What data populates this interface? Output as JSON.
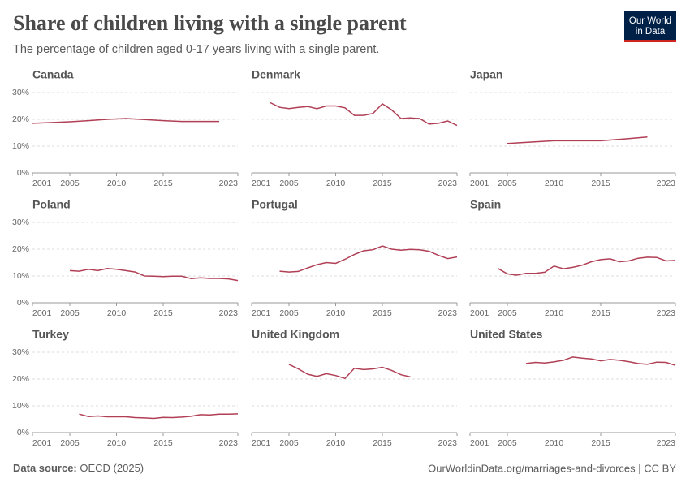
{
  "header": {
    "title": "Share of children living with a single parent",
    "subtitle": "The percentage of children aged 0-17 years living with a single parent.",
    "logo": [
      "Our World",
      "in Data"
    ]
  },
  "footer": {
    "source_label": "Data source:",
    "source": "OECD (2025)",
    "url": "OurWorldinData.org/marriages-and-divorces | CC BY"
  },
  "chart_data": [
    {
      "type": "line",
      "title": "Canada",
      "color": "#b13f55",
      "x": [
        2001,
        2003,
        2005,
        2007,
        2009,
        2011,
        2013,
        2015,
        2017,
        2019,
        2021
      ],
      "values": [
        18.5,
        18.8,
        19.1,
        19.5,
        20.0,
        20.3,
        19.9,
        19.5,
        19.2,
        19.2,
        19.2
      ],
      "xlim": [
        2001,
        2023
      ],
      "xticks": [
        2001,
        2005,
        2010,
        2015,
        2023
      ],
      "ylim": [
        0,
        30
      ],
      "yticks": [
        {
          "value": 0,
          "label": "0%"
        },
        {
          "value": 10,
          "label": "10%"
        },
        {
          "value": 20,
          "label": "20%"
        },
        {
          "value": 30,
          "label": "30%"
        }
      ]
    },
    {
      "type": "line",
      "title": "Denmark",
      "color": "#b13f55",
      "x": [
        2003,
        2004,
        2005,
        2006,
        2007,
        2008,
        2009,
        2010,
        2011,
        2012,
        2013,
        2014,
        2015,
        2016,
        2017,
        2018,
        2019,
        2020,
        2021,
        2022,
        2023
      ],
      "values": [
        26.2,
        24.5,
        24.0,
        24.5,
        24.8,
        24.0,
        25.0,
        25.0,
        24.3,
        21.5,
        21.5,
        22.2,
        25.8,
        23.5,
        20.3,
        20.5,
        20.3,
        18.2,
        18.5,
        19.4,
        17.7
      ],
      "xlim": [
        2001,
        2023
      ],
      "xticks": [
        2001,
        2005,
        2010,
        2015,
        2023
      ],
      "ylim": [
        0,
        30
      ],
      "yticks": [
        0,
        10,
        20,
        30
      ]
    },
    {
      "type": "line",
      "title": "Japan",
      "color": "#b13f55",
      "x": [
        2005,
        2007,
        2010,
        2012,
        2015,
        2018,
        2020
      ],
      "values": [
        11.0,
        11.4,
        12.0,
        12.0,
        12.0,
        12.8,
        13.4
      ],
      "xlim": [
        2001,
        2023
      ],
      "xticks": [
        2001,
        2005,
        2010,
        2015,
        2023
      ],
      "ylim": [
        0,
        30
      ],
      "yticks": [
        0,
        10,
        20,
        30
      ]
    },
    {
      "type": "line",
      "title": "Poland",
      "color": "#b13f55",
      "x": [
        2005,
        2006,
        2007,
        2008,
        2009,
        2010,
        2011,
        2012,
        2013,
        2014,
        2015,
        2016,
        2017,
        2018,
        2019,
        2020,
        2021,
        2022,
        2023
      ],
      "values": [
        12.0,
        11.8,
        12.5,
        12.0,
        12.8,
        12.5,
        12.0,
        11.5,
        10.0,
        9.9,
        9.8,
        9.9,
        9.9,
        9.0,
        9.3,
        9.1,
        9.1,
        8.9,
        8.3
      ],
      "xlim": [
        2001,
        2023
      ],
      "xticks": [
        2001,
        2005,
        2010,
        2015,
        2023
      ],
      "ylim": [
        0,
        30
      ],
      "yticks": [
        {
          "value": 0,
          "label": "0%"
        },
        {
          "value": 10,
          "label": "10%"
        },
        {
          "value": 20,
          "label": "20%"
        },
        {
          "value": 30,
          "label": "30%"
        }
      ]
    },
    {
      "type": "line",
      "title": "Portugal",
      "color": "#b13f55",
      "x": [
        2004,
        2005,
        2006,
        2007,
        2008,
        2009,
        2010,
        2011,
        2012,
        2013,
        2014,
        2015,
        2016,
        2017,
        2018,
        2019,
        2020,
        2021,
        2022,
        2023
      ],
      "values": [
        11.8,
        11.5,
        11.7,
        13.0,
        14.2,
        15.0,
        14.7,
        16.2,
        18.0,
        19.4,
        19.8,
        21.2,
        20.0,
        19.6,
        19.9,
        19.8,
        19.2,
        17.7,
        16.5,
        17.1
      ],
      "xlim": [
        2001,
        2023
      ],
      "xticks": [
        2001,
        2005,
        2010,
        2015,
        2023
      ],
      "ylim": [
        0,
        30
      ],
      "yticks": [
        0,
        10,
        20,
        30
      ]
    },
    {
      "type": "line",
      "title": "Spain",
      "color": "#b13f55",
      "x": [
        2004,
        2005,
        2006,
        2007,
        2008,
        2009,
        2010,
        2011,
        2012,
        2013,
        2014,
        2015,
        2016,
        2017,
        2018,
        2019,
        2020,
        2021,
        2022,
        2023
      ],
      "values": [
        12.8,
        10.8,
        10.3,
        11.0,
        11.0,
        11.4,
        13.7,
        12.7,
        13.2,
        14.0,
        15.3,
        16.1,
        16.4,
        15.3,
        15.6,
        16.6,
        17.0,
        16.9,
        15.6,
        15.8
      ],
      "xlim": [
        2001,
        2023
      ],
      "xticks": [
        2001,
        2005,
        2010,
        2015,
        2023
      ],
      "ylim": [
        0,
        30
      ],
      "yticks": [
        0,
        10,
        20,
        30
      ]
    },
    {
      "type": "line",
      "title": "Turkey",
      "color": "#b13f55",
      "x": [
        2006,
        2007,
        2008,
        2009,
        2010,
        2011,
        2012,
        2013,
        2014,
        2015,
        2016,
        2017,
        2018,
        2019,
        2020,
        2021,
        2022,
        2023
      ],
      "values": [
        6.9,
        6.0,
        6.2,
        5.9,
        5.9,
        5.9,
        5.6,
        5.5,
        5.3,
        5.7,
        5.6,
        5.8,
        6.1,
        6.7,
        6.6,
        6.9,
        6.9,
        7.0
      ],
      "xlim": [
        2001,
        2023
      ],
      "xticks": [
        2001,
        2005,
        2010,
        2015,
        2023
      ],
      "ylim": [
        0,
        30
      ],
      "yticks": [
        {
          "value": 0,
          "label": "0%"
        },
        {
          "value": 10,
          "label": "10%"
        },
        {
          "value": 20,
          "label": "20%"
        },
        {
          "value": 30,
          "label": "30%"
        }
      ]
    },
    {
      "type": "line",
      "title": "United Kingdom",
      "color": "#b13f55",
      "x": [
        2005,
        2006,
        2007,
        2008,
        2009,
        2010,
        2011,
        2012,
        2013,
        2014,
        2015,
        2016,
        2017,
        2018
      ],
      "values": [
        25.5,
        23.8,
        21.8,
        21.0,
        22.0,
        21.3,
        20.2,
        24.0,
        23.5,
        23.8,
        24.4,
        23.2,
        21.6,
        20.8
      ],
      "xlim": [
        2001,
        2023
      ],
      "xticks": [
        2001,
        2005,
        2010,
        2015,
        2023
      ],
      "ylim": [
        0,
        30
      ],
      "yticks": [
        0,
        10,
        20,
        30
      ]
    },
    {
      "type": "line",
      "title": "United States",
      "color": "#b13f55",
      "x": [
        2007,
        2008,
        2009,
        2010,
        2011,
        2012,
        2013,
        2014,
        2015,
        2016,
        2017,
        2018,
        2019,
        2020,
        2021,
        2022,
        2023
      ],
      "values": [
        25.8,
        26.2,
        26.0,
        26.4,
        27.0,
        28.2,
        27.8,
        27.5,
        26.8,
        27.3,
        27.0,
        26.5,
        25.8,
        25.5,
        26.3,
        26.2,
        25.1
      ],
      "xlim": [
        2001,
        2023
      ],
      "xticks": [
        2001,
        2005,
        2010,
        2015,
        2023
      ],
      "ylim": [
        0,
        30
      ],
      "yticks": [
        0,
        10,
        20,
        30
      ]
    }
  ]
}
